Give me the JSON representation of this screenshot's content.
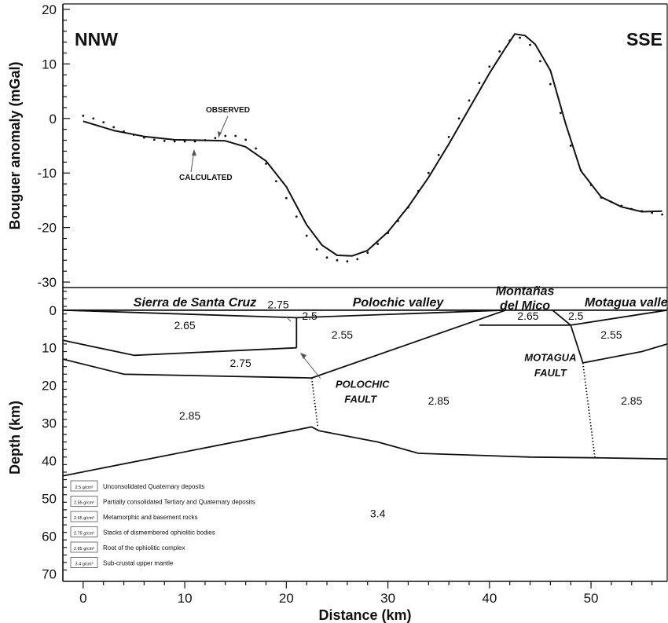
{
  "chart_data": [
    {
      "type": "line",
      "ylabel": "Bouguer anomaly (mGal)",
      "ylim": [
        -31,
        21
      ],
      "xlim": [
        -2,
        57.5
      ],
      "y_ticks": [
        "20",
        "10",
        "0",
        "-10",
        "-20",
        "-30"
      ],
      "y_tick_values": [
        20,
        10,
        0,
        -10,
        -20,
        -30
      ],
      "direction_left": "NNW",
      "direction_right": "SSE",
      "annotation_observed": "OBSERVED",
      "annotation_calculated": "CALCULATED",
      "series": [
        {
          "name": "CALCULATED",
          "style": "solid",
          "x": [
            0,
            3,
            6,
            9,
            12,
            14,
            16,
            18,
            20,
            22,
            23.5,
            25,
            26.5,
            28,
            30,
            32,
            34,
            36,
            38,
            40,
            41.5,
            42.5,
            43.5,
            44.5,
            46,
            47.5,
            49,
            51,
            53,
            55,
            57
          ],
          "y": [
            -0.5,
            -2.2,
            -3.3,
            -3.9,
            -4,
            -4.1,
            -5.2,
            -7.8,
            -12.5,
            -19.5,
            -23.2,
            -25.1,
            -25.2,
            -24.2,
            -20.8,
            -16.2,
            -10.8,
            -4.7,
            1.8,
            8.3,
            12.7,
            15.5,
            15.2,
            13.6,
            8.8,
            -1,
            -9.6,
            -14.4,
            -16.2,
            -17.1,
            -17
          ]
        },
        {
          "name": "OBSERVED",
          "style": "dotted",
          "x": [
            0,
            1,
            2,
            3,
            4,
            5,
            6,
            7,
            8,
            9,
            10,
            11,
            12,
            13,
            14,
            15,
            16,
            17,
            18,
            19,
            20,
            21,
            22,
            23,
            24,
            25,
            26,
            27,
            28,
            29,
            30,
            31,
            32,
            33,
            34,
            35,
            36,
            37,
            38,
            39,
            40,
            41,
            42,
            43,
            44,
            45,
            46,
            47,
            48,
            49,
            50,
            51,
            52,
            53,
            54,
            55,
            56,
            57
          ],
          "y": [
            0.5,
            0,
            -0.7,
            -1.6,
            -2.4,
            -3,
            -3.5,
            -3.9,
            -4.1,
            -4.2,
            -4.2,
            -4.2,
            -4,
            -3.6,
            -3.2,
            -3.2,
            -3.9,
            -5.5,
            -8.3,
            -11.5,
            -14.6,
            -18,
            -21.5,
            -24,
            -25.5,
            -26,
            -26.2,
            -25.8,
            -24.6,
            -23,
            -21,
            -18.8,
            -16.3,
            -13.3,
            -10,
            -6.7,
            -3.4,
            0,
            3.3,
            6.5,
            9.5,
            12.3,
            14.3,
            14.8,
            13.5,
            10.5,
            6.3,
            1,
            -5,
            -9.5,
            -12.2,
            -14.5,
            -15.3,
            -16,
            -16.6,
            -17,
            -17.3,
            -17.6
          ]
        }
      ]
    },
    {
      "type": "cross-section",
      "xlabel": "Distance (km)",
      "ylabel": "Depth (km)",
      "xlim": [
        -2,
        57.5
      ],
      "ylim": [
        72,
        -6
      ],
      "x_ticks": [
        "0",
        "10",
        "20",
        "30",
        "40",
        "50"
      ],
      "x_tick_values": [
        0,
        10,
        20,
        30,
        40,
        50
      ],
      "y_ticks": [
        "0",
        "10",
        "20",
        "30",
        "40",
        "50",
        "60",
        "70"
      ],
      "y_tick_values": [
        0,
        10,
        20,
        30,
        40,
        50,
        60,
        70
      ],
      "body_boundaries": [
        {
          "x": [
            -2,
            21
          ],
          "y": [
            0,
            0
          ],
          "style": "solid"
        },
        {
          "x": [
            -2,
            21
          ],
          "y": [
            0,
            2
          ],
          "style": "solid"
        },
        {
          "x": [
            21,
            41.6
          ],
          "y": [
            0,
            0
          ],
          "style": "solid"
        },
        {
          "x": [
            21,
            41.6
          ],
          "y": [
            2,
            0
          ],
          "style": "solid"
        },
        {
          "x": [
            21,
            21
          ],
          "y": [
            2,
            10
          ],
          "style": "solid"
        },
        {
          "x": [
            -2,
            5,
            21
          ],
          "y": [
            8,
            12,
            10
          ],
          "style": "solid"
        },
        {
          "x": [
            -2,
            4,
            22.5
          ],
          "y": [
            13,
            17,
            18
          ],
          "style": "solid"
        },
        {
          "x": [
            22.5,
            41.6
          ],
          "y": [
            18,
            0
          ],
          "style": "solid"
        },
        {
          "x": [
            41.6,
            57.5
          ],
          "y": [
            0,
            0
          ],
          "style": "solid"
        },
        {
          "x": [
            39,
            48
          ],
          "y": [
            4,
            4
          ],
          "style": "solid"
        },
        {
          "x": [
            46.2,
            48
          ],
          "y": [
            0,
            4
          ],
          "style": "solid"
        },
        {
          "x": [
            48,
            57.5
          ],
          "y": [
            4,
            0
          ],
          "style": "solid"
        },
        {
          "x": [
            48,
            49.2
          ],
          "y": [
            4,
            14
          ],
          "style": "solid"
        },
        {
          "x": [
            49.2,
            55,
            57.5
          ],
          "y": [
            14,
            11,
            9
          ],
          "style": "solid"
        },
        {
          "x": [
            22.5,
            23.1
          ],
          "y": [
            18,
            31
          ],
          "style": "dotted"
        },
        {
          "x": [
            49.2,
            50.4
          ],
          "y": [
            14,
            39.5
          ],
          "style": "dotted"
        },
        {
          "x": [
            -2,
            22.5,
            23.2,
            29,
            33,
            44,
            50.4,
            57.5
          ],
          "y": [
            44,
            31,
            32,
            35,
            38,
            39,
            39.2,
            39.5
          ],
          "style": "solid"
        }
      ],
      "labels": [
        {
          "text": "Sierra de Santa Cruz",
          "x": 11,
          "y": -2,
          "style": "bold-italic"
        },
        {
          "text": "Polochic valley",
          "x": 31,
          "y": -2,
          "style": "bold-italic"
        },
        {
          "text": "Montañas",
          "x": 43.5,
          "y": -5.1,
          "style": "bold-italic"
        },
        {
          "text": "del Mico",
          "x": 43.5,
          "y": -1.2,
          "style": "bold-italic"
        },
        {
          "text": "Motagua valley",
          "x": 53.8,
          "y": -2,
          "style": "bold-italic"
        },
        {
          "text": "2.75",
          "x": 19.2,
          "y": -1.5,
          "style": "normal"
        },
        {
          "text": "2.5",
          "x": 22.3,
          "y": 1.5,
          "style": "normal"
        },
        {
          "text": "2.65",
          "x": 10,
          "y": 4,
          "style": "normal"
        },
        {
          "text": "2.55",
          "x": 25.5,
          "y": 6.5,
          "style": "normal"
        },
        {
          "text": "2.75",
          "x": 15.5,
          "y": 14,
          "style": "normal"
        },
        {
          "text": "2.65",
          "x": 43.8,
          "y": 1.5,
          "style": "normal"
        },
        {
          "text": "2.5",
          "x": 48.5,
          "y": 1.5,
          "style": "normal"
        },
        {
          "text": "2.55",
          "x": 52,
          "y": 6.5,
          "style": "normal"
        },
        {
          "text": "2.85",
          "x": 10.5,
          "y": 28,
          "style": "normal"
        },
        {
          "text": "2.85",
          "x": 35,
          "y": 24,
          "style": "normal"
        },
        {
          "text": "2.85",
          "x": 54,
          "y": 24,
          "style": "normal"
        },
        {
          "text": "3.4",
          "x": 29,
          "y": 54,
          "style": "normal"
        },
        {
          "text": "POLOCHIC",
          "x": 27.5,
          "y": 19.5,
          "style": "bold-italic"
        },
        {
          "text": "FAULT",
          "x": 27.3,
          "y": 23.5,
          "style": "bold-italic"
        },
        {
          "text": "MOTAGUA",
          "x": 46,
          "y": 12.5,
          "style": "bold-italic"
        },
        {
          "text": "FAULT",
          "x": 46,
          "y": 16.5,
          "style": "bold-italic"
        }
      ],
      "legend": [
        {
          "density": "2.5 g/cm³",
          "description": "Unconsolidated Quaternary deposits"
        },
        {
          "density": "2.55 g/cm³",
          "description": "Partially consolidated Tertiary and Quaternary deposits"
        },
        {
          "density": "2.65 g/cm³",
          "description": "Metamorphic and basement rocks"
        },
        {
          "density": "2.75 g/cm³",
          "description": "Stacks of dismembered ophiolitic bodies"
        },
        {
          "density": "2.85 g/cm³",
          "description": "Root of the ophiolitic complex"
        },
        {
          "density": "3.4 g/cm³",
          "description": "Sub-crustal upper mantle"
        }
      ]
    }
  ]
}
